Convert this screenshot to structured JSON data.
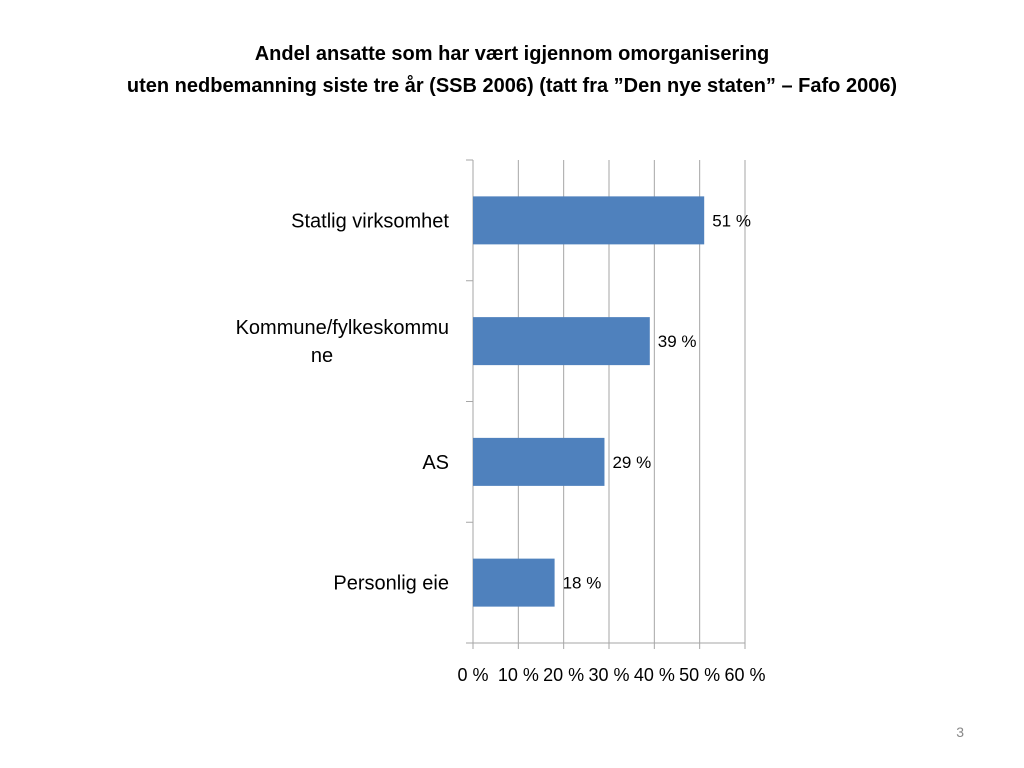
{
  "slide": {
    "title_line1": "Andel ansatte som har vært igjennom omorganisering",
    "title_line2": "uten nedbemanning siste tre år (SSB 2006) (tatt fra ”Den nye staten” – Fafo 2006)",
    "page_number": "3"
  },
  "chart_data": {
    "type": "bar",
    "orientation": "horizontal",
    "title": "Andel ansatte som har vært igjennom omorganisering uten nedbemanning siste tre år (SSB 2006) (tatt fra ”Den nye staten” – Fafo 2006)",
    "categories": [
      "Statlig virksomhet",
      "Kommune/fylkeskommune",
      "AS",
      "Personlig eie"
    ],
    "category_label_lines": [
      [
        "Statlig virksomhet"
      ],
      [
        "Kommune/fylkeskommu",
        "ne"
      ],
      [
        "AS"
      ],
      [
        "Personlig eie"
      ]
    ],
    "values": [
      51,
      39,
      29,
      18
    ],
    "data_labels": [
      "51 %",
      "39 %",
      "29 %",
      "18 %"
    ],
    "x_ticks": [
      0,
      10,
      20,
      30,
      40,
      50,
      60
    ],
    "x_tick_labels": [
      "0 %",
      "10 %",
      "20 %",
      "30 %",
      "40 %",
      "50 %",
      "60 %"
    ],
    "xlim": [
      0,
      60
    ],
    "grid": true,
    "legend": "none",
    "colors": {
      "bar": "#4f81bd",
      "grid": "#a6a6a6",
      "axis": "#a6a6a6"
    }
  }
}
